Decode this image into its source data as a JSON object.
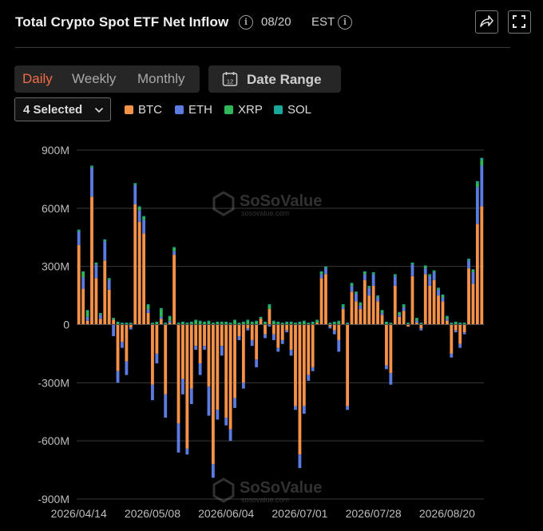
{
  "header": {
    "title": "Total Crypto Spot ETF Net Inflow",
    "date": "08/20",
    "timezone": "EST"
  },
  "controls": {
    "tabs": [
      {
        "label": "Daily",
        "active": true
      },
      {
        "label": "Weekly",
        "active": false
      },
      {
        "label": "Monthly",
        "active": false
      }
    ],
    "date_range_label": "Date Range",
    "calendar_icon_text": "12",
    "selector_label": "4 Selected"
  },
  "watermark": "SoSoValue",
  "watermark_sub": "sosovalue.com",
  "colors": {
    "BTC": "#f5924a",
    "ETH": "#5b7be0",
    "XRP": "#2fb75a",
    "SOL": "#1aa89a",
    "accent": "#f36c45"
  },
  "chart_data": {
    "type": "bar",
    "stacked": true,
    "x_ticks": [
      "2026/04/14",
      "2026/05/08",
      "2026/06/04",
      "2026/07/01",
      "2026/07/28",
      "2026/08/20"
    ],
    "x_tick_index": [
      0,
      17,
      34,
      51,
      68,
      85
    ],
    "y_ticks": [
      "900M",
      "600M",
      "300M",
      "0",
      "-300M",
      "-600M",
      "-900M"
    ],
    "ylim": [
      -900,
      900
    ],
    "units": "M",
    "grid": true,
    "legend_position": "top-left",
    "series": [
      {
        "name": "BTC",
        "color": "#f5924a",
        "values": [
          410,
          185,
          20,
          660,
          240,
          30,
          330,
          180,
          25,
          -240,
          -90,
          -190,
          -15,
          620,
          530,
          470,
          60,
          -310,
          -150,
          30,
          -360,
          10,
          360,
          -510,
          -280,
          -640,
          -330,
          -110,
          -200,
          -110,
          -320,
          -720,
          -440,
          -110,
          -480,
          -540,
          -380,
          -60,
          -300,
          -20,
          -80,
          -180,
          30,
          -50,
          80,
          -50,
          -120,
          -80,
          -30,
          -130,
          -420,
          -670,
          -420,
          -260,
          -220,
          10,
          240,
          260,
          -10,
          -30,
          -80,
          80,
          -420,
          170,
          120,
          80,
          230,
          150,
          200,
          120,
          50,
          -210,
          -250,
          200,
          40,
          70,
          -10,
          250,
          10,
          -20,
          260,
          200,
          230,
          150,
          120,
          20,
          -150,
          -30,
          -100,
          -40,
          290,
          210,
          520,
          610
        ]
      },
      {
        "name": "ETH",
        "color": "#5b7be0",
        "values": [
          70,
          60,
          20,
          150,
          70,
          20,
          100,
          50,
          -60,
          -60,
          -30,
          -70,
          -10,
          100,
          60,
          70,
          20,
          -80,
          -50,
          10,
          -120,
          10,
          20,
          -150,
          -80,
          -30,
          -80,
          -20,
          -60,
          -20,
          -150,
          -70,
          -50,
          -50,
          -40,
          -60,
          -50,
          -20,
          -30,
          -10,
          -30,
          -40,
          0,
          -20,
          -10,
          -30,
          -20,
          -20,
          -10,
          -30,
          -20,
          -70,
          -40,
          -30,
          -20,
          0,
          20,
          30,
          -10,
          -20,
          -60,
          10,
          -20,
          30,
          40,
          20,
          30,
          40,
          60,
          20,
          10,
          -20,
          -60,
          50,
          10,
          20,
          0,
          60,
          10,
          -10,
          30,
          50,
          40,
          30,
          20,
          10,
          -20,
          -10,
          -20,
          -10,
          40,
          60,
          190,
          210
        ]
      },
      {
        "name": "XRP",
        "color": "#2fb75a",
        "values": [
          5,
          25,
          30,
          5,
          5,
          5,
          5,
          5,
          5,
          10,
          5,
          5,
          5,
          5,
          15,
          15,
          20,
          5,
          10,
          40,
          5,
          20,
          15,
          5,
          10,
          5,
          10,
          20,
          15,
          10,
          15,
          5,
          10,
          10,
          10,
          5,
          20,
          5,
          10,
          20,
          10,
          15,
          5,
          10,
          20,
          15,
          10,
          5,
          10,
          10,
          5,
          10,
          15,
          5,
          10,
          10,
          10,
          5,
          5,
          10,
          15,
          10,
          5,
          10,
          5,
          10,
          10,
          5,
          5,
          5,
          10,
          10,
          5,
          5,
          10,
          10,
          5,
          5,
          10,
          5,
          10,
          5,
          5,
          5,
          10,
          10,
          5,
          10,
          5,
          5,
          5,
          10,
          20,
          30
        ]
      },
      {
        "name": "SOL",
        "color": "#1aa89a",
        "values": [
          5,
          5,
          5,
          5,
          5,
          5,
          5,
          5,
          5,
          5,
          5,
          5,
          5,
          5,
          5,
          5,
          5,
          5,
          5,
          5,
          5,
          5,
          5,
          5,
          5,
          5,
          5,
          5,
          5,
          5,
          5,
          5,
          5,
          5,
          5,
          5,
          5,
          5,
          5,
          5,
          5,
          5,
          5,
          5,
          5,
          5,
          5,
          5,
          5,
          5,
          5,
          5,
          5,
          5,
          5,
          5,
          5,
          5,
          5,
          5,
          5,
          5,
          5,
          5,
          5,
          5,
          5,
          5,
          5,
          5,
          5,
          5,
          5,
          5,
          5,
          5,
          5,
          5,
          5,
          5,
          5,
          5,
          5,
          5,
          5,
          5,
          5,
          5,
          5,
          5,
          5,
          5,
          10,
          10
        ]
      }
    ]
  }
}
